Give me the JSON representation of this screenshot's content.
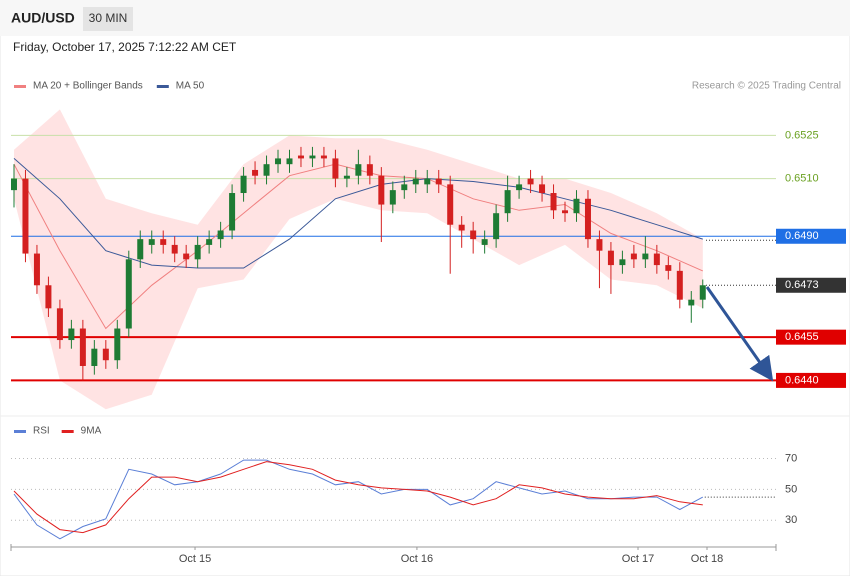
{
  "header": {
    "symbol": "AUD/USD",
    "interval": "30 MIN",
    "datetime": "Friday, October 17, 2025 7:12:22 AM CET",
    "credit": "Research © 2025 Trading Central"
  },
  "chart_data": [
    {
      "type": "candlestick",
      "xlim": [
        -0.26,
        66.38
      ],
      "ylim": [
        0.6428,
        0.6539
      ],
      "yticks": [
        0.6525,
        {
          "value": 0.651,
          "label": "0.6510"
        },
        {
          "value": 0.649,
          "label": "0.6490"
        },
        0.6473,
        0.6455,
        {
          "value": 0.644,
          "label": "0.6440"
        }
      ],
      "tick_colors": [
        "#6aa121",
        "#6aa121",
        "#1f6fe5",
        "#333333",
        "#e00000",
        "#e00000"
      ],
      "tick_styles": [
        "thin",
        "thin",
        "line",
        "current",
        "thick",
        "thick"
      ],
      "up_color": "#1e7b34",
      "down_color": "#d42020",
      "open": [
        0.6506,
        0.651,
        0.6484,
        0.6473,
        0.6465,
        0.6454,
        0.6458,
        0.6445,
        0.6451,
        0.6447,
        0.6458,
        0.6482,
        0.6487,
        0.6489,
        0.6487,
        0.6484,
        0.6482,
        0.6487,
        0.6489,
        0.6492,
        0.6505,
        0.6513,
        0.6511,
        0.6515,
        0.6515,
        0.6518,
        0.6517,
        0.6518,
        0.6517,
        0.651,
        0.6511,
        0.6515,
        0.6511,
        0.6501,
        0.6506,
        0.6508,
        0.6508,
        0.651,
        0.6508,
        0.6494,
        0.6492,
        0.6487,
        0.6489,
        0.6498,
        0.6506,
        0.651,
        0.6508,
        0.6505,
        0.6499,
        0.6498,
        0.6503,
        0.6489,
        0.6485,
        0.648,
        0.6484,
        0.6482,
        0.6484,
        0.648,
        0.6478,
        0.6466,
        0.6468
      ],
      "high": [
        0.6515,
        0.6513,
        0.6487,
        0.6476,
        0.6468,
        0.6461,
        0.6461,
        0.6454,
        0.6454,
        0.6461,
        0.6485,
        0.6492,
        0.6492,
        0.6492,
        0.649,
        0.6487,
        0.649,
        0.6492,
        0.6495,
        0.6508,
        0.6514,
        0.6516,
        0.6518,
        0.652,
        0.652,
        0.6521,
        0.6521,
        0.6521,
        0.652,
        0.6514,
        0.652,
        0.6518,
        0.6514,
        0.6509,
        0.6511,
        0.6513,
        0.6513,
        0.6513,
        0.6511,
        0.6497,
        0.6495,
        0.6492,
        0.6501,
        0.6511,
        0.6511,
        0.6513,
        0.6511,
        0.6508,
        0.6502,
        0.6506,
        0.6506,
        0.6492,
        0.6488,
        0.6485,
        0.6487,
        0.649,
        0.6487,
        0.6483,
        0.6481,
        0.6471,
        0.6475
      ],
      "low": [
        0.65,
        0.6481,
        0.647,
        0.6462,
        0.6451,
        0.6451,
        0.644,
        0.6442,
        0.6444,
        0.6444,
        0.6455,
        0.6479,
        0.6484,
        0.6484,
        0.6481,
        0.6479,
        0.6479,
        0.6484,
        0.6486,
        0.6489,
        0.6502,
        0.6508,
        0.6508,
        0.6512,
        0.6512,
        0.6514,
        0.6514,
        0.6514,
        0.6507,
        0.6507,
        0.6508,
        0.6508,
        0.6488,
        0.6498,
        0.6503,
        0.6505,
        0.6505,
        0.6505,
        0.6477,
        0.6486,
        0.6484,
        0.6484,
        0.6486,
        0.6495,
        0.6503,
        0.6505,
        0.6502,
        0.6496,
        0.6495,
        0.6495,
        0.6486,
        0.6472,
        0.647,
        0.6477,
        0.6479,
        0.6479,
        0.6477,
        0.6475,
        0.6465,
        0.646,
        0.6465
      ],
      "close": [
        0.651,
        0.6484,
        0.6473,
        0.6465,
        0.6454,
        0.6458,
        0.6445,
        0.6451,
        0.6447,
        0.6458,
        0.6482,
        0.6489,
        0.6489,
        0.6487,
        0.6484,
        0.6482,
        0.6487,
        0.6489,
        0.6492,
        0.6505,
        0.6511,
        0.6511,
        0.6515,
        0.6517,
        0.6517,
        0.6517,
        0.6518,
        0.6517,
        0.651,
        0.6511,
        0.6515,
        0.6511,
        0.6501,
        0.6506,
        0.6508,
        0.651,
        0.651,
        0.6508,
        0.6494,
        0.6492,
        0.6489,
        0.6489,
        0.6498,
        0.6506,
        0.6508,
        0.6508,
        0.6505,
        0.6499,
        0.6498,
        0.6503,
        0.6489,
        0.6485,
        0.648,
        0.6482,
        0.6482,
        0.6484,
        0.648,
        0.6478,
        0.6468,
        0.6468,
        0.6473
      ],
      "overlays": [
        {
          "name": "MA 20 + Bollinger Bands",
          "color": "#f08080",
          "band_color": "#ffdede",
          "x": [
            0,
            4,
            8,
            12,
            16,
            20,
            24,
            28,
            32,
            36,
            40,
            44,
            48,
            52,
            56,
            60
          ],
          "values": [
            0.6515,
            0.6485,
            0.6458,
            0.6473,
            0.6485,
            0.6498,
            0.6511,
            0.6515,
            0.6511,
            0.651,
            0.6503,
            0.6499,
            0.6501,
            0.6491,
            0.6485,
            0.6478
          ],
          "upper": [
            0.652,
            0.6534,
            0.6503,
            0.6498,
            0.6494,
            0.6515,
            0.6525,
            0.6524,
            0.6524,
            0.652,
            0.6515,
            0.651,
            0.651,
            0.6505,
            0.6498,
            0.6489
          ],
          "lower": [
            0.6503,
            0.644,
            0.643,
            0.6435,
            0.6472,
            0.6475,
            0.6496,
            0.6503,
            0.6499,
            0.6498,
            0.6489,
            0.648,
            0.6487,
            0.6475,
            0.6473,
            0.6465
          ]
        },
        {
          "name": "MA 50",
          "color": "#3b5998",
          "x": [
            0,
            4,
            8,
            12,
            16,
            20,
            24,
            28,
            32,
            36,
            40,
            44,
            48,
            52,
            56,
            60
          ],
          "values": [
            0.6517,
            0.6503,
            0.6485,
            0.648,
            0.6479,
            0.6479,
            0.6489,
            0.6503,
            0.6508,
            0.651,
            0.6509,
            0.6507,
            0.6503,
            0.6499,
            0.6494,
            0.6489
          ]
        }
      ]
    },
    {
      "type": "line",
      "xlim": [
        -0.26,
        66.38
      ],
      "ylim": [
        14,
        82
      ],
      "xticks": [
        {
          "value": 15.77,
          "label": "Oct 15"
        },
        {
          "value": 35.1,
          "label": "Oct 16"
        },
        {
          "value": 54.36,
          "label": "Oct 17"
        },
        {
          "value": 60.37,
          "label": "Oct 18"
        }
      ],
      "yticks": [
        70,
        50,
        30
      ],
      "series": [
        {
          "name": "RSI",
          "color": "#5b7fd6",
          "x": [
            0,
            2,
            4,
            6,
            8,
            10,
            12,
            14,
            16,
            18,
            20,
            22,
            24,
            26,
            28,
            30,
            32,
            34,
            36,
            38,
            40,
            42,
            44,
            46,
            48,
            50,
            52,
            54,
            56,
            58,
            60
          ],
          "values": [
            47,
            27,
            18,
            26,
            31,
            63,
            60,
            53,
            55,
            60,
            69,
            69,
            63,
            60,
            53,
            55,
            47,
            50,
            50,
            40,
            44,
            55,
            51,
            47,
            49,
            44,
            44,
            45,
            45,
            37,
            45
          ]
        },
        {
          "name": "9MA",
          "color": "#e02020",
          "x": [
            0,
            2,
            4,
            6,
            8,
            10,
            12,
            14,
            16,
            18,
            20,
            22,
            24,
            26,
            28,
            30,
            32,
            34,
            36,
            38,
            40,
            42,
            44,
            46,
            48,
            50,
            52,
            54,
            56,
            58,
            60
          ],
          "values": [
            49,
            34,
            24,
            22,
            27,
            44,
            58,
            58,
            55,
            58,
            63,
            68,
            66,
            63,
            56,
            53,
            51,
            50,
            49,
            45,
            40,
            44,
            53,
            51,
            47,
            45,
            44,
            44,
            46,
            42,
            40
          ]
        }
      ]
    }
  ]
}
